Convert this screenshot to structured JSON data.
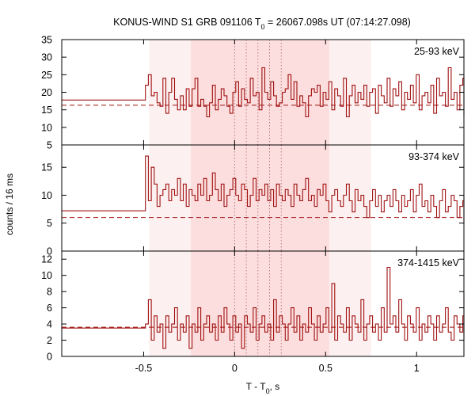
{
  "chart_data": {
    "type": "line",
    "title_main": "KONUS-WIND S1 GRB 091106 T",
    "title_sub": "0",
    "title_rest": " = 26067.098s UT (07:14:27.098)",
    "xlabel_main": "T - T",
    "xlabel_sub": "0",
    "xlabel_rest": ", s",
    "ylabel": "counts / 16 ms",
    "xlim": [
      -0.95,
      1.26
    ],
    "xticks": [
      -0.5,
      0,
      0.5,
      1
    ],
    "x_tick_labels": [
      "-0.5",
      "0",
      "0.5",
      "1"
    ],
    "bin_width_s": 0.016,
    "trigger_time_s": -0.49,
    "grid": false,
    "shaded_intervals": [
      {
        "from": -0.47,
        "to": 0.75,
        "color": "#fdf0f0"
      },
      {
        "from": -0.24,
        "to": 0.52,
        "color": "#fcdede"
      }
    ],
    "vertical_marks": [
      0.0,
      0.064,
      0.128,
      0.192,
      0.256
    ],
    "series_color": "#a01010",
    "panels": [
      {
        "band": "25-93 keV",
        "ylim": [
          5,
          35
        ],
        "yticks": [
          5,
          10,
          15,
          20,
          25,
          30,
          35
        ],
        "background": 16.3,
        "pretrigger_level": 17.8,
        "values": [
          22,
          25,
          19,
          20,
          17,
          16,
          24,
          14,
          20,
          24,
          18,
          15,
          19,
          15,
          21,
          16,
          21,
          24,
          16,
          18,
          16,
          13,
          17,
          22,
          15,
          18,
          21,
          19,
          16,
          14,
          20,
          23,
          16,
          21,
          18,
          17,
          24,
          19,
          20,
          15,
          27,
          20,
          18,
          23,
          19,
          16,
          17,
          20,
          21,
          25,
          18,
          23,
          16,
          19,
          17,
          13,
          19,
          21,
          20,
          22,
          16,
          20,
          18,
          23,
          15,
          21,
          19,
          16,
          24,
          13,
          19,
          22,
          17,
          20,
          18,
          22,
          16,
          20,
          21,
          14,
          22,
          19,
          17,
          24,
          16,
          21,
          19,
          23,
          15,
          20,
          18,
          22,
          17,
          25,
          15,
          19,
          20,
          17,
          22,
          14,
          24,
          19,
          20,
          16,
          27,
          18,
          20,
          15,
          22,
          24,
          19,
          18,
          21,
          17,
          16,
          20,
          22,
          17,
          15,
          19,
          23,
          18,
          16,
          20,
          13,
          21,
          17,
          19,
          22,
          16,
          18,
          14,
          20,
          17,
          23,
          16,
          21,
          18,
          15
        ]
      },
      {
        "band": "93-374 keV",
        "ylim": [
          0,
          19
        ],
        "yticks": [
          0,
          5,
          10,
          15
        ],
        "background": 6.0,
        "pretrigger_level": 7.2,
        "values": [
          17,
          9,
          15,
          12,
          8,
          10,
          11,
          12,
          9,
          11,
          10,
          13,
          9,
          12,
          8,
          11,
          10,
          9,
          12,
          10,
          13,
          9,
          10,
          14,
          11,
          9,
          12,
          8,
          10,
          11,
          13,
          10,
          9,
          12,
          11,
          8,
          10,
          13,
          9,
          11,
          10,
          12,
          9,
          11,
          8,
          12,
          10,
          9,
          11,
          10,
          8,
          12,
          10,
          9,
          11,
          13,
          9,
          10,
          8,
          11,
          10,
          12,
          9,
          7,
          10,
          11,
          9,
          8,
          10,
          12,
          9,
          7,
          11,
          9,
          10,
          8,
          6,
          9,
          11,
          8,
          10,
          7,
          9,
          10,
          8,
          11,
          9,
          7,
          10,
          8,
          9,
          11,
          7,
          10,
          12,
          8,
          9,
          7,
          10,
          8,
          6,
          9,
          11,
          7,
          8,
          10,
          9,
          6,
          8,
          9,
          7,
          10,
          8,
          6,
          9,
          7,
          8,
          10,
          6,
          9,
          7,
          8,
          10,
          5,
          8,
          7,
          9,
          6,
          8,
          7,
          5,
          8,
          6,
          9,
          7,
          5,
          8,
          6
        ]
      },
      {
        "band": "374-1415 keV",
        "ylim": [
          0,
          13
        ],
        "yticks": [
          0,
          2,
          4,
          6,
          8,
          10,
          12
        ],
        "background": 3.6,
        "pretrigger_level": 3.5,
        "values": [
          4,
          7,
          2,
          5,
          3,
          4,
          1,
          5,
          3,
          4,
          6,
          2,
          4,
          3,
          5,
          1,
          4,
          3,
          6,
          2,
          4,
          5,
          3,
          4,
          2,
          5,
          3,
          6,
          4,
          2,
          5,
          3,
          4,
          1,
          5,
          4,
          3,
          6,
          2,
          4,
          5,
          3,
          4,
          2,
          7,
          3,
          5,
          4,
          2,
          4,
          6,
          3,
          5,
          2,
          4,
          3,
          6,
          4,
          2,
          5,
          3,
          4,
          6,
          3,
          9,
          2,
          5,
          4,
          3,
          6,
          2,
          5,
          4,
          3,
          7,
          2,
          4,
          5,
          3,
          4,
          2,
          6,
          3,
          11,
          4,
          5,
          3,
          7,
          4,
          2,
          5,
          4,
          3,
          6,
          2,
          4,
          3,
          5,
          4,
          2,
          5,
          3,
          4,
          6,
          3,
          2,
          5,
          4,
          3,
          5,
          2,
          4,
          3,
          6,
          4,
          3,
          5,
          2,
          4,
          3,
          5,
          4,
          2,
          4,
          3,
          5,
          4,
          3,
          6,
          2,
          4,
          3,
          5,
          8,
          4,
          3,
          7,
          4
        ]
      }
    ]
  }
}
